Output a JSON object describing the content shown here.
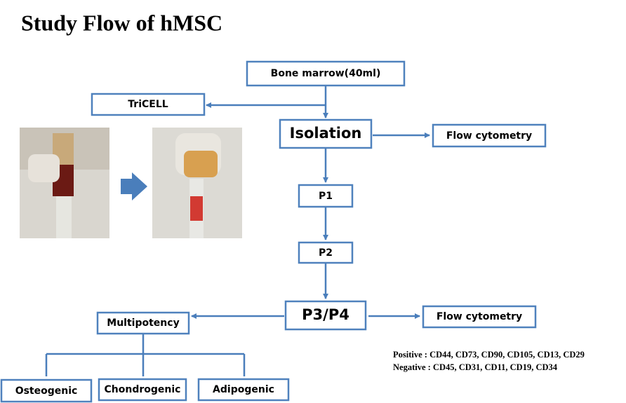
{
  "title": "Study Flow of hMSC",
  "nodes": [
    {
      "label": "Bone marrow(40ml)"
    },
    {
      "label": "TriCELL"
    },
    {
      "label": "Isolation"
    },
    {
      "label": "Flow cytometry"
    },
    {
      "label": "P1"
    },
    {
      "label": "P2"
    },
    {
      "label": "P3/P4"
    },
    {
      "label": "Flow cytometry"
    },
    {
      "label": "Multipotency"
    },
    {
      "label": "Osteogenic"
    },
    {
      "label": "Chondrogenic"
    },
    {
      "label": "Adipogenic"
    }
  ],
  "markers": {
    "positive": "Positive : CD44, CD73, CD90, CD105, CD13, CD29",
    "negative": "Negative : CD45, CD31, CD11, CD19, CD34"
  }
}
